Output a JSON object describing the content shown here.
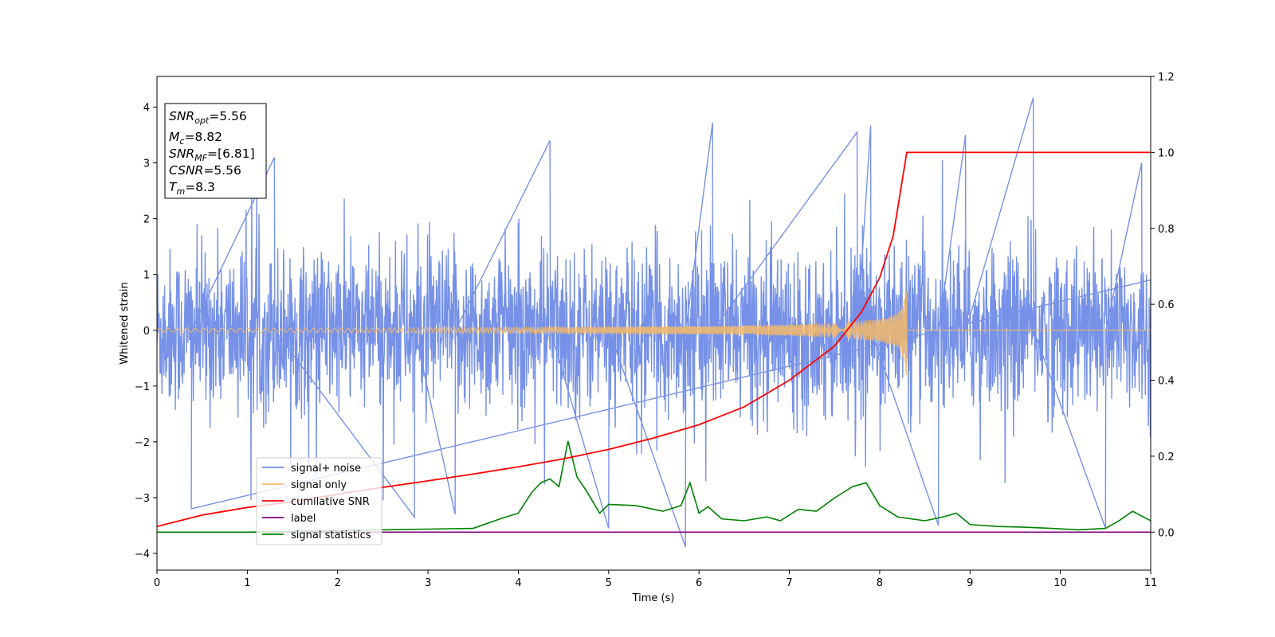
{
  "chart_data": {
    "type": "line",
    "xlabel": "Time (s)",
    "ylabel": "Whitened strain",
    "xlim": [
      0,
      11
    ],
    "ylim_left": [
      -4.3,
      4.55
    ],
    "ylim_right": [
      -0.1,
      1.2
    ],
    "xticks": [
      0,
      1,
      2,
      3,
      4,
      5,
      6,
      7,
      8,
      9,
      10,
      11
    ],
    "yticks_left": [
      -4,
      -3,
      -2,
      -1,
      0,
      1,
      2,
      3,
      4
    ],
    "yticks_right": [
      0.0,
      0.2,
      0.4,
      0.6,
      0.8,
      1.0,
      1.2
    ],
    "grid": false,
    "legend_position": "lower-left",
    "info_box": {
      "position": "top-left",
      "lines": [
        {
          "name": "SNR",
          "sub": "opt",
          "value": "=5.56"
        },
        {
          "name": "M",
          "sub": "c",
          "value": "=8.82"
        },
        {
          "name": "SNR",
          "sub": "MF",
          "value": "=[6.81]"
        },
        {
          "name": "CSNR",
          "sub": "",
          "value": "=5.56"
        },
        {
          "name": "T",
          "sub": "m",
          "value": "=8.3"
        }
      ]
    },
    "series": [
      {
        "name": "signal+ noise",
        "axis": "left",
        "color": "#6f8be6",
        "description": "dense whitened noise, amplitude roughly ±1.5 with spikes to about ±3",
        "spikes": [
          {
            "x": 0.38,
            "y": -3.2
          },
          {
            "x": 1.3,
            "y": 3.1
          },
          {
            "x": 2.85,
            "y": -3.35
          },
          {
            "x": 3.3,
            "y": -3.3
          },
          {
            "x": 4.35,
            "y": 3.4
          },
          {
            "x": 5.0,
            "y": -3.55
          },
          {
            "x": 5.85,
            "y": -3.88
          },
          {
            "x": 6.15,
            "y": 3.72
          },
          {
            "x": 7.75,
            "y": 3.55
          },
          {
            "x": 7.9,
            "y": 3.67
          },
          {
            "x": 8.65,
            "y": -3.5
          },
          {
            "x": 8.95,
            "y": 3.5
          },
          {
            "x": 9.7,
            "y": 4.17
          },
          {
            "x": 10.5,
            "y": -3.55
          },
          {
            "x": 10.9,
            "y": 3.0
          }
        ]
      },
      {
        "name": "signal only",
        "axis": "left",
        "color": "#f5b96a",
        "description": "chirp envelope growing toward merger, abruptly ending",
        "envelope": {
          "x": [
            0,
            2,
            4,
            6,
            7,
            7.5,
            8,
            8.2,
            8.27,
            8.3
          ],
          "y": [
            0.03,
            0.04,
            0.05,
            0.07,
            0.1,
            0.13,
            0.2,
            0.3,
            0.55,
            0.9
          ]
        },
        "merger_time": 8.3
      },
      {
        "name": "cumilative SNR",
        "axis": "right",
        "color": "#ff0000",
        "x": [
          0,
          0.5,
          1,
          1.5,
          2,
          2.5,
          3,
          3.5,
          4,
          4.5,
          5,
          5.5,
          6,
          6.5,
          7,
          7.5,
          7.8,
          8.0,
          8.15,
          8.3,
          11
        ],
        "y": [
          0.015,
          0.045,
          0.065,
          0.08,
          0.1,
          0.118,
          0.135,
          0.153,
          0.172,
          0.193,
          0.218,
          0.248,
          0.283,
          0.33,
          0.4,
          0.49,
          0.58,
          0.67,
          0.78,
          1.0,
          1.0
        ]
      },
      {
        "name": "label",
        "axis": "right",
        "color": "#800080",
        "x": [
          0,
          11
        ],
        "y": [
          0.0,
          0.0
        ]
      },
      {
        "name": "signal statistics",
        "axis": "right",
        "color": "#008000",
        "x": [
          0,
          1,
          2,
          2.5,
          3,
          3.5,
          3.8,
          4.0,
          4.15,
          4.25,
          4.35,
          4.45,
          4.55,
          4.65,
          4.75,
          4.9,
          5.0,
          5.3,
          5.6,
          5.8,
          5.9,
          6.0,
          6.1,
          6.25,
          6.5,
          6.75,
          6.9,
          7.1,
          7.3,
          7.5,
          7.7,
          7.85,
          8.0,
          8.2,
          8.5,
          8.7,
          8.85,
          9.0,
          9.3,
          9.6,
          9.9,
          10.2,
          10.5,
          10.65,
          10.8,
          11
        ],
        "y": [
          0.0,
          0.0,
          0.004,
          0.006,
          0.008,
          0.01,
          0.035,
          0.05,
          0.105,
          0.13,
          0.14,
          0.12,
          0.24,
          0.145,
          0.11,
          0.05,
          0.073,
          0.07,
          0.055,
          0.07,
          0.13,
          0.05,
          0.067,
          0.035,
          0.03,
          0.04,
          0.03,
          0.06,
          0.055,
          0.09,
          0.12,
          0.13,
          0.07,
          0.04,
          0.03,
          0.04,
          0.05,
          0.02,
          0.015,
          0.013,
          0.01,
          0.006,
          0.01,
          0.03,
          0.055,
          0.03
        ]
      }
    ]
  }
}
